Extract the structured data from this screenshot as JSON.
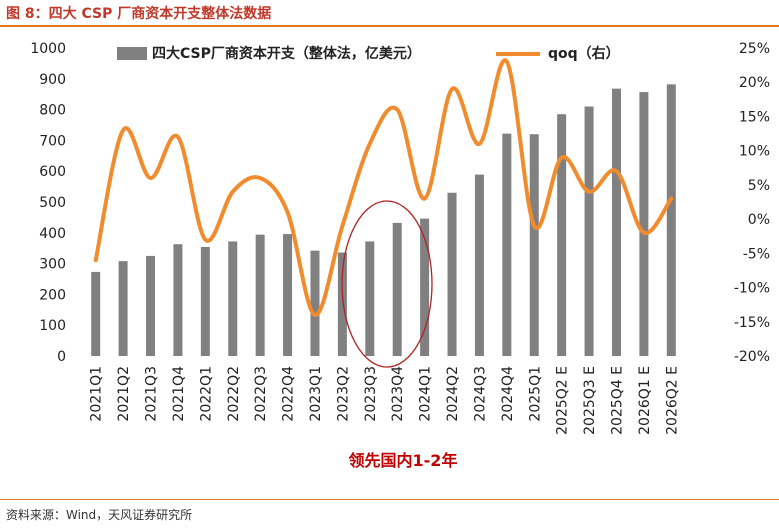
{
  "figure": {
    "title": "图 8：四大 CSP 厂商资本开支整体法数据",
    "source": "资料来源：Wind，天风证券研究所"
  },
  "annotation": {
    "text": "领先国内1-2年",
    "color": "#c00000"
  },
  "chart_data": {
    "type": "bar",
    "categories": [
      "2021Q1",
      "2021Q2",
      "2021Q3",
      "2021Q4",
      "2022Q1",
      "2022Q2",
      "2022Q3",
      "2022Q4",
      "2023Q1",
      "2023Q2",
      "2023Q3",
      "2023Q4",
      "2024Q1",
      "2024Q2",
      "2024Q3",
      "2024Q4",
      "2025Q1",
      "2025Q2 E",
      "2025Q3 E",
      "2025Q4 E",
      "2026Q1 E",
      "2026Q2 E"
    ],
    "series": [
      {
        "name": "四大CSP厂商资本开支（整体法，亿美元）",
        "type": "bar",
        "axis": "left",
        "color": "#808080",
        "values": [
          273,
          308,
          325,
          363,
          354,
          372,
          394,
          396,
          342,
          336,
          372,
          432,
          446,
          530,
          589,
          722,
          720,
          785,
          810,
          868,
          857,
          882
        ]
      },
      {
        "name": "qoq（右）",
        "type": "line",
        "axis": "right",
        "color": "#f08c2e",
        "values": [
          -0.06,
          0.13,
          0.06,
          0.12,
          -0.03,
          0.04,
          0.06,
          0.01,
          -0.14,
          -0.01,
          0.11,
          0.16,
          0.03,
          0.19,
          0.11,
          0.23,
          -0.01,
          0.09,
          0.04,
          0.07,
          -0.02,
          0.03
        ]
      }
    ],
    "left_axis": {
      "min": 0,
      "max": 1000,
      "step": 100,
      "ticks": [
        "0",
        "100",
        "200",
        "300",
        "400",
        "500",
        "600",
        "700",
        "800",
        "900",
        "1000"
      ]
    },
    "right_axis": {
      "min": -0.2,
      "max": 0.25,
      "step": 0.05,
      "ticks": [
        "-20%",
        "-15%",
        "-10%",
        "-5%",
        "0%",
        "5%",
        "10%",
        "15%",
        "20%",
        "25%"
      ]
    },
    "grid": false,
    "legend": "top"
  }
}
